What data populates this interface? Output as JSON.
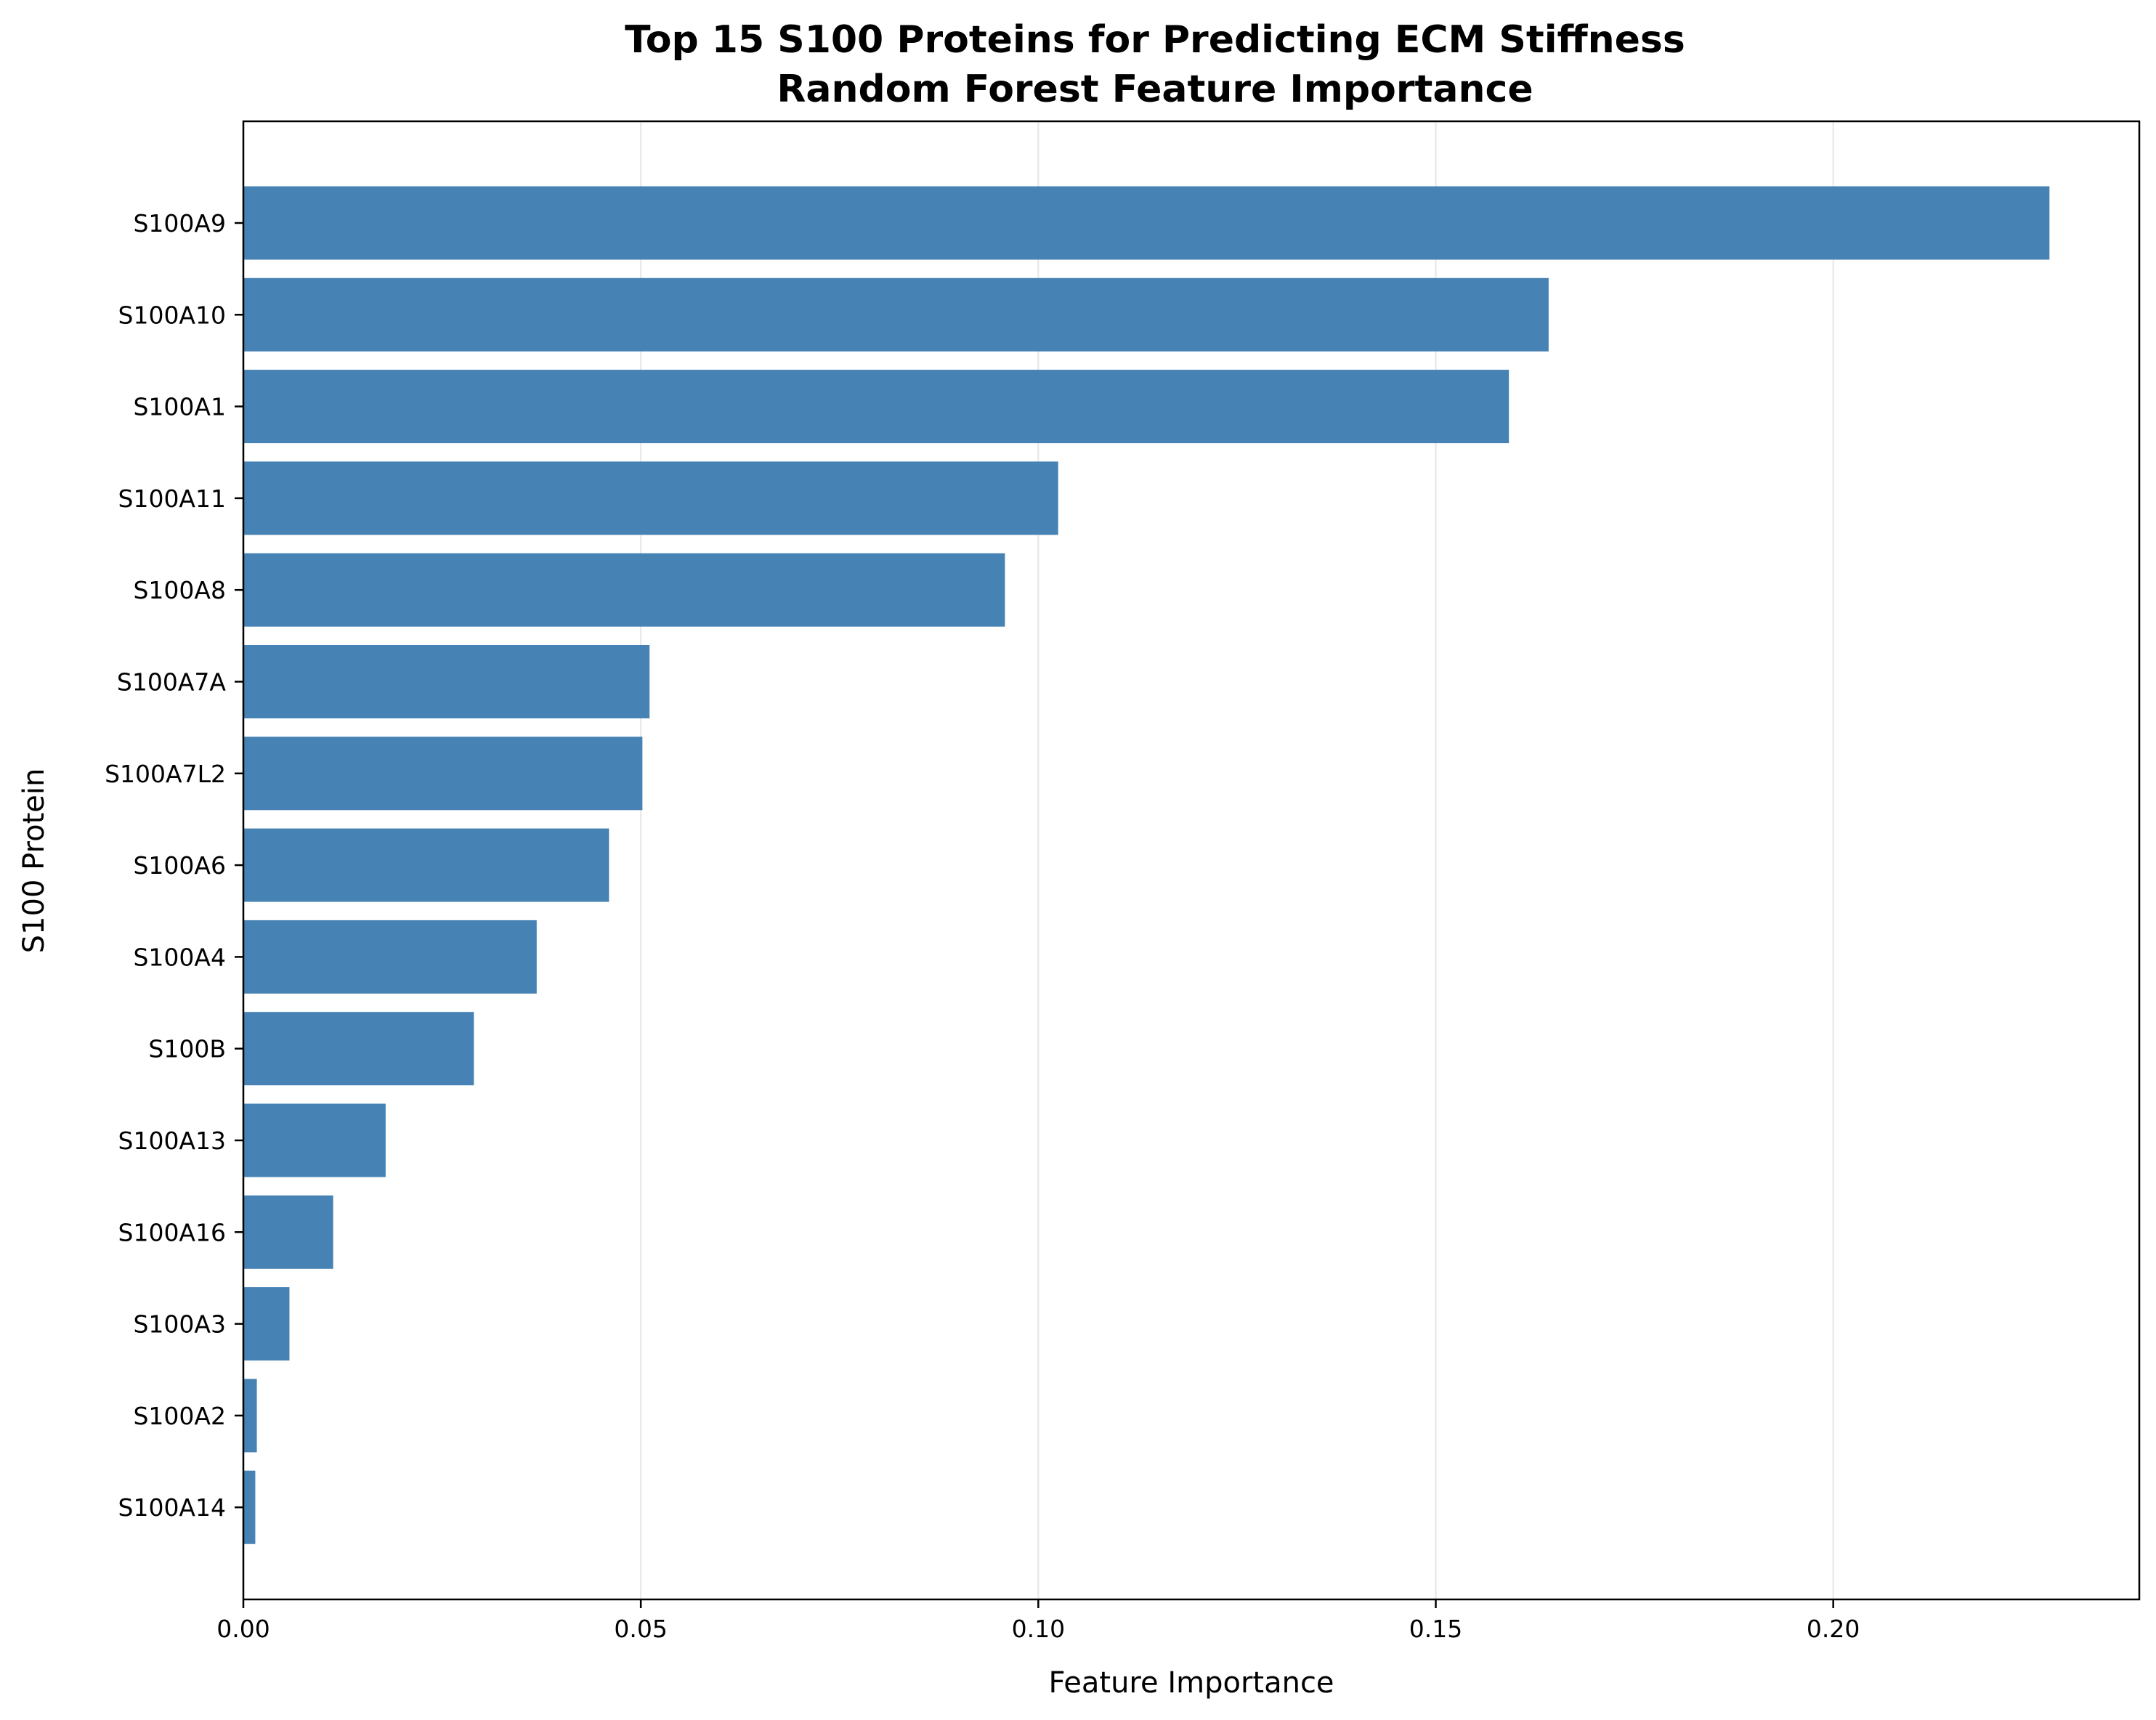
{
  "chart_data": {
    "type": "bar",
    "orientation": "horizontal",
    "title": [
      "Top 15 S100 Proteins for Predicting ECM Stiffness",
      "Random Forest Feature Importance"
    ],
    "xlabel": "Feature Importance",
    "ylabel": "S100 Protein",
    "xlim": [
      0,
      0.2385
    ],
    "xticks": [
      0.0,
      0.05,
      0.1,
      0.15,
      0.2
    ],
    "xtick_labels": [
      "0.00",
      "0.05",
      "0.10",
      "0.15",
      "0.20"
    ],
    "grid": "x",
    "bar_color": "#4682b4",
    "categories": [
      "S100A9",
      "S100A10",
      "S100A1",
      "S100A11",
      "S100A8",
      "S100A7A",
      "S100A7L2",
      "S100A6",
      "S100A4",
      "S100B",
      "S100A13",
      "S100A16",
      "S100A3",
      "S100A2",
      "S100A14"
    ],
    "values": [
      0.2272,
      0.1642,
      0.1592,
      0.1025,
      0.0958,
      0.0511,
      0.0502,
      0.046,
      0.0369,
      0.029,
      0.0179,
      0.0113,
      0.0058,
      0.0017,
      0.0015
    ]
  }
}
